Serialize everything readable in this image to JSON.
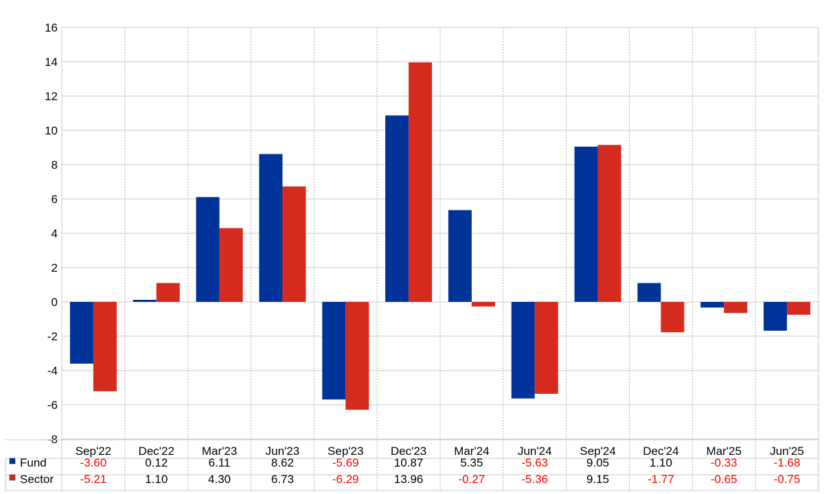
{
  "chart_data": {
    "type": "bar",
    "categories": [
      "Sep'22",
      "Dec'22",
      "Mar'23",
      "Jun'23",
      "Sep'23",
      "Dec'23",
      "Mar'24",
      "Jun'24",
      "Sep'24",
      "Dec'24",
      "Mar'25",
      "Jun'25"
    ],
    "series": [
      {
        "name": "Fund",
        "color": "#003399",
        "values": [
          -3.6,
          0.12,
          6.11,
          8.62,
          -5.69,
          10.87,
          5.35,
          -5.63,
          9.05,
          1.1,
          -0.33,
          -1.68
        ],
        "labels": [
          "-3.60",
          "0.12",
          "6.11",
          "8.62",
          "-5.69",
          "10.87",
          "5.35",
          "-5.63",
          "9.05",
          "1.10",
          "-0.33",
          "-1.68"
        ]
      },
      {
        "name": "Sector",
        "color": "#d52b1e",
        "values": [
          -5.21,
          1.1,
          4.3,
          6.73,
          -6.29,
          13.96,
          -0.27,
          -5.36,
          9.15,
          -1.77,
          -0.65,
          -0.75
        ],
        "labels": [
          "-5.21",
          "1.10",
          "4.30",
          "6.73",
          "-6.29",
          "13.96",
          "-0.27",
          "-5.36",
          "9.15",
          "-1.77",
          "-0.65",
          "-0.75"
        ]
      }
    ],
    "ylim": [
      -8,
      16
    ],
    "yticks": [
      "16",
      "14",
      "12",
      "10",
      "8",
      "6",
      "4",
      "2",
      "0",
      "-2",
      "-4",
      "-6",
      "-8"
    ],
    "negative_text_color": "#ff0000",
    "positive_text_color": "#000000",
    "grid": true,
    "legend": "data-table-below"
  }
}
